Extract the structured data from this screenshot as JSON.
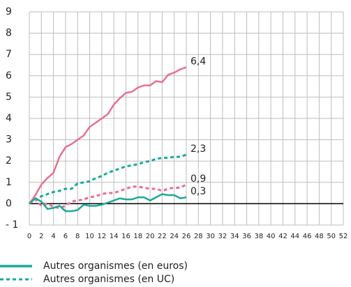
{
  "chart_data": {
    "type": "line",
    "x": [
      0,
      1,
      2,
      3,
      4,
      5,
      6,
      7,
      8,
      9,
      10,
      11,
      12,
      13,
      14,
      15,
      16,
      17,
      18,
      19,
      20,
      21,
      22,
      23,
      24,
      25,
      26
    ],
    "series": [
      {
        "color": "#e8708f",
        "dash": false,
        "end_label": "6,4",
        "values": [
          0,
          0.4,
          0.9,
          1.2,
          1.45,
          2.2,
          2.65,
          2.8,
          3.0,
          3.2,
          3.6,
          3.8,
          4.0,
          4.2,
          4.65,
          4.95,
          5.2,
          5.25,
          5.45,
          5.55,
          5.55,
          5.75,
          5.7,
          6.05,
          6.15,
          6.3,
          6.4
        ]
      },
      {
        "name": "Autres organismes (en UC)",
        "color": "#1aa99a",
        "dash": true,
        "end_label": "2,3",
        "values": [
          0,
          0.2,
          0.35,
          0.45,
          0.55,
          0.6,
          0.7,
          0.7,
          0.95,
          1.0,
          1.05,
          1.2,
          1.3,
          1.45,
          1.55,
          1.65,
          1.75,
          1.8,
          1.85,
          1.95,
          2.0,
          2.1,
          2.15,
          2.15,
          2.2,
          2.2,
          2.3
        ]
      },
      {
        "color": "#e8708f",
        "dash": true,
        "end_label": "0,9",
        "values": [
          0,
          0.2,
          -0.1,
          0,
          -0.15,
          -0.2,
          -0.1,
          0.1,
          0.15,
          0.2,
          0.3,
          0.35,
          0.45,
          0.5,
          0.5,
          0.6,
          0.7,
          0.8,
          0.8,
          0.75,
          0.7,
          0.7,
          0.6,
          0.7,
          0.75,
          0.75,
          0.9
        ]
      },
      {
        "name": "Autres organismes (en euros)",
        "color": "#1aa99a",
        "dash": false,
        "end_label": "0,3",
        "values": [
          0,
          0.25,
          0.1,
          -0.25,
          -0.2,
          -0.1,
          -0.35,
          -0.35,
          -0.3,
          -0.05,
          -0.1,
          -0.1,
          -0.05,
          0.05,
          0.15,
          0.25,
          0.2,
          0.2,
          0.3,
          0.3,
          0.15,
          0.3,
          0.45,
          0.4,
          0.4,
          0.25,
          0.3
        ]
      }
    ],
    "legend_order": [
      3,
      1
    ],
    "legend_position": "bottom-left",
    "xlim": [
      0,
      52
    ],
    "xticks": [
      0,
      2,
      4,
      6,
      8,
      10,
      12,
      14,
      16,
      18,
      20,
      22,
      24,
      26,
      28,
      30,
      32,
      34,
      36,
      38,
      40,
      42,
      44,
      46,
      48,
      50,
      52
    ],
    "ylim": [
      -1,
      9
    ],
    "yticks": [
      {
        "value": -1,
        "label": "- 1"
      },
      0,
      1,
      2,
      3,
      4,
      5,
      6,
      7,
      8,
      9
    ],
    "grid": true
  }
}
